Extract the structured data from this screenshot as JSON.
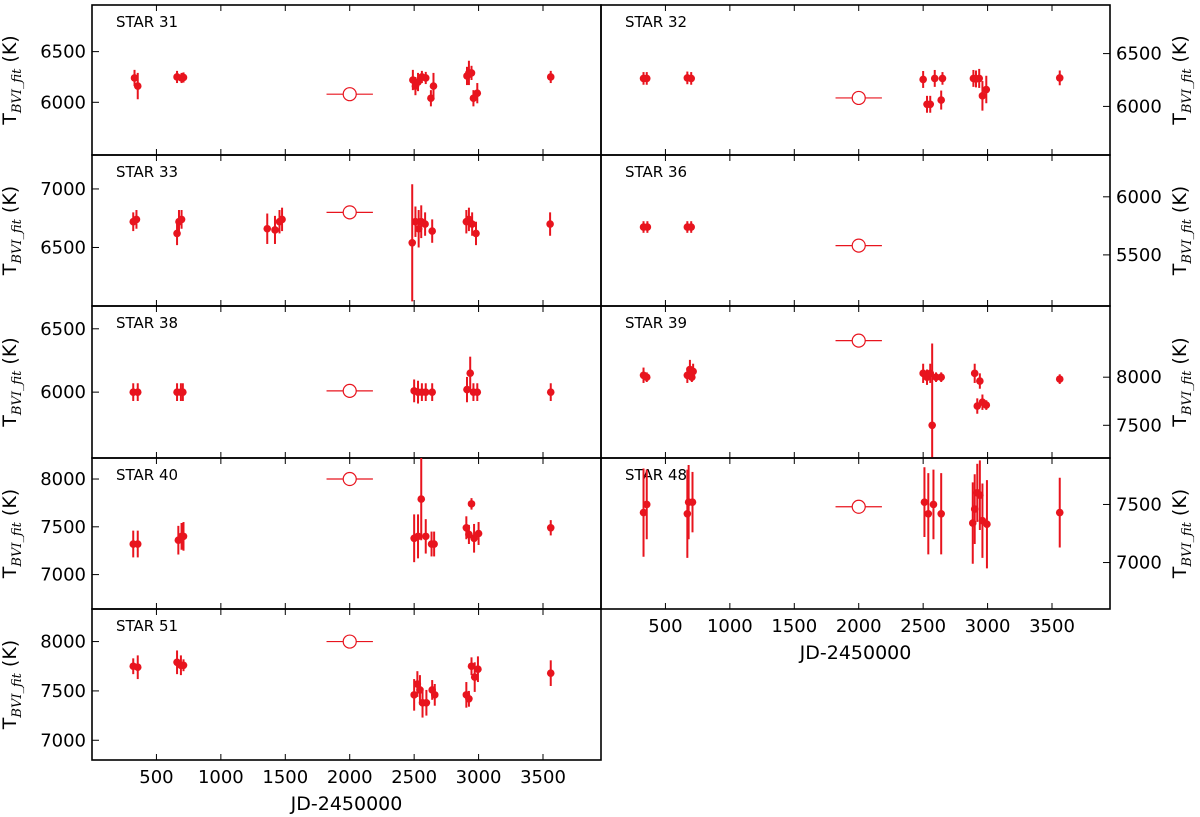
{
  "chart_data": {
    "type": "scatter",
    "xlabel": "JD-2450000",
    "ylabel": {
      "prefix": "T",
      "sub": "BVI_fit",
      "unit": " (K)"
    },
    "xlim": [
      0,
      3950
    ],
    "xticks": [
      500,
      1000,
      1500,
      2000,
      2500,
      3000,
      3500
    ],
    "colors": {
      "points": "#e8141e"
    },
    "panels": [
      {
        "label": "STAR 31",
        "side": "left",
        "ylim": [
          5480,
          6960
        ],
        "yticks": [
          6000,
          6500
        ],
        "points": [
          [
            330,
            6240,
            80
          ],
          [
            355,
            6160,
            130
          ],
          [
            660,
            6250,
            60
          ],
          [
            695,
            6240,
            50
          ],
          [
            710,
            6245,
            50
          ],
          [
            2490,
            6220,
            100
          ],
          [
            2510,
            6160,
            90
          ],
          [
            2530,
            6200,
            90
          ],
          [
            2560,
            6250,
            60
          ],
          [
            2590,
            6240,
            60
          ],
          [
            2630,
            6040,
            80
          ],
          [
            2650,
            6160,
            130
          ],
          [
            2910,
            6260,
            90
          ],
          [
            2925,
            6290,
            120
          ],
          [
            2945,
            6290,
            70
          ],
          [
            2960,
            6040,
            80
          ],
          [
            2990,
            6090,
            100
          ],
          [
            3560,
            6250,
            60
          ]
        ],
        "mean": [
          2000,
          6080,
          180
        ]
      },
      {
        "label": "STAR 32",
        "side": "right",
        "ylim": [
          5540,
          6960
        ],
        "yticks": [
          6000,
          6500
        ],
        "points": [
          [
            330,
            6265,
            60
          ],
          [
            355,
            6265,
            60
          ],
          [
            670,
            6270,
            60
          ],
          [
            700,
            6265,
            60
          ],
          [
            2500,
            6255,
            80
          ],
          [
            2530,
            6020,
            80
          ],
          [
            2555,
            6020,
            80
          ],
          [
            2590,
            6265,
            80
          ],
          [
            2640,
            6060,
            90
          ],
          [
            2650,
            6265,
            60
          ],
          [
            2890,
            6265,
            80
          ],
          [
            2910,
            6260,
            80
          ],
          [
            2935,
            6265,
            90
          ],
          [
            2960,
            6100,
            140
          ],
          [
            2990,
            6160,
            130
          ],
          [
            3560,
            6270,
            70
          ]
        ],
        "mean": [
          2000,
          6080,
          180
        ]
      },
      {
        "label": "STAR 33",
        "side": "left",
        "ylim": [
          6000,
          7290
        ],
        "yticks": [
          6500,
          7000
        ],
        "points": [
          [
            320,
            6720,
            80
          ],
          [
            345,
            6740,
            80
          ],
          [
            660,
            6620,
            100
          ],
          [
            675,
            6720,
            100
          ],
          [
            695,
            6740,
            80
          ],
          [
            1360,
            6660,
            130
          ],
          [
            1420,
            6650,
            120
          ],
          [
            1455,
            6720,
            100
          ],
          [
            1475,
            6740,
            100
          ],
          [
            2485,
            6540,
            500
          ],
          [
            2510,
            6720,
            130
          ],
          [
            2535,
            6660,
            160
          ],
          [
            2555,
            6720,
            140
          ],
          [
            2585,
            6700,
            100
          ],
          [
            2640,
            6640,
            100
          ],
          [
            2905,
            6720,
            100
          ],
          [
            2925,
            6740,
            100
          ],
          [
            2950,
            6700,
            100
          ],
          [
            2980,
            6620,
            100
          ],
          [
            3555,
            6700,
            100
          ]
        ],
        "mean": [
          2000,
          6800,
          180
        ]
      },
      {
        "label": "STAR 36",
        "side": "right",
        "ylim": [
          5060,
          6360
        ],
        "yticks": [
          5500,
          6000
        ],
        "points": [
          [
            330,
            5740,
            50
          ],
          [
            360,
            5740,
            50
          ],
          [
            670,
            5740,
            50
          ],
          [
            700,
            5740,
            50
          ]
        ],
        "mean": [
          2000,
          5580,
          180
        ]
      },
      {
        "label": "STAR 38",
        "side": "left",
        "ylim": [
          5480,
          6680
        ],
        "yticks": [
          6000,
          6500
        ],
        "points": [
          [
            320,
            6000,
            70
          ],
          [
            355,
            6000,
            70
          ],
          [
            660,
            6000,
            70
          ],
          [
            690,
            6000,
            70
          ],
          [
            705,
            6000,
            70
          ],
          [
            2500,
            6010,
            90
          ],
          [
            2530,
            6000,
            90
          ],
          [
            2560,
            6000,
            70
          ],
          [
            2590,
            6000,
            70
          ],
          [
            2640,
            6000,
            70
          ],
          [
            2910,
            6020,
            100
          ],
          [
            2935,
            6150,
            130
          ],
          [
            2960,
            6000,
            70
          ],
          [
            2990,
            6000,
            70
          ],
          [
            3560,
            6000,
            70
          ]
        ],
        "mean": [
          2000,
          6010,
          180
        ]
      },
      {
        "label": "STAR 39",
        "side": "right",
        "ylim": [
          7160,
          8740
        ],
        "yticks": [
          7500,
          8000
        ],
        "points": [
          [
            330,
            8020,
            80
          ],
          [
            355,
            8000,
            50
          ],
          [
            670,
            8020,
            80
          ],
          [
            690,
            8080,
            100
          ],
          [
            705,
            8000,
            50
          ],
          [
            715,
            8060,
            80
          ],
          [
            2500,
            8040,
            100
          ],
          [
            2530,
            8000,
            80
          ],
          [
            2555,
            8040,
            100
          ],
          [
            2570,
            7500,
            850
          ],
          [
            2600,
            8000,
            50
          ],
          [
            2640,
            8000,
            50
          ],
          [
            2900,
            8040,
            100
          ],
          [
            2920,
            7700,
            80
          ],
          [
            2940,
            7960,
            80
          ],
          [
            2960,
            7740,
            80
          ],
          [
            2990,
            7710,
            50
          ],
          [
            3560,
            7980,
            50
          ]
        ],
        "mean": [
          2000,
          8380,
          180
        ]
      },
      {
        "label": "STAR 40",
        "side": "left",
        "ylim": [
          6640,
          8220
        ],
        "yticks": [
          7000,
          7500,
          8000
        ],
        "points": [
          [
            320,
            7320,
            140
          ],
          [
            355,
            7320,
            140
          ],
          [
            670,
            7360,
            150
          ],
          [
            695,
            7400,
            140
          ],
          [
            710,
            7400,
            150
          ],
          [
            2500,
            7380,
            250
          ],
          [
            2530,
            7400,
            230
          ],
          [
            2555,
            7790,
            430
          ],
          [
            2590,
            7400,
            180
          ],
          [
            2635,
            7320,
            130
          ],
          [
            2655,
            7320,
            130
          ],
          [
            2905,
            7490,
            120
          ],
          [
            2925,
            7420,
            100
          ],
          [
            2945,
            7740,
            60
          ],
          [
            2965,
            7380,
            150
          ],
          [
            3000,
            7430,
            120
          ],
          [
            3560,
            7490,
            80
          ]
        ],
        "mean": [
          2000,
          8000,
          180
        ]
      },
      {
        "label": "STAR 48",
        "side": "right",
        "ylim": [
          6600,
          7900
        ],
        "yticks": [
          7000,
          7500
        ],
        "points": [
          [
            330,
            7430,
            380
          ],
          [
            355,
            7500,
            300
          ],
          [
            670,
            7420,
            380
          ],
          [
            680,
            7520,
            320
          ],
          [
            710,
            7520,
            260
          ],
          [
            2510,
            7520,
            300
          ],
          [
            2540,
            7420,
            350
          ],
          [
            2580,
            7500,
            300
          ],
          [
            2640,
            7420,
            350
          ],
          [
            2885,
            7340,
            350
          ],
          [
            2900,
            7460,
            300
          ],
          [
            2920,
            7600,
            250
          ],
          [
            2940,
            7580,
            300
          ],
          [
            2960,
            7360,
            320
          ],
          [
            2995,
            7330,
            380
          ],
          [
            3560,
            7430,
            300
          ]
        ],
        "mean": [
          2000,
          7480,
          180
        ]
      },
      {
        "label": "STAR 51",
        "side": "left",
        "ylim": [
          6800,
          8330
        ],
        "yticks": [
          7000,
          7500,
          8000
        ],
        "points": [
          [
            320,
            7750,
            80
          ],
          [
            355,
            7740,
            120
          ],
          [
            660,
            7790,
            120
          ],
          [
            690,
            7760,
            100
          ],
          [
            710,
            7760,
            60
          ],
          [
            2500,
            7460,
            160
          ],
          [
            2525,
            7570,
            130
          ],
          [
            2545,
            7510,
            150
          ],
          [
            2565,
            7380,
            150
          ],
          [
            2595,
            7380,
            130
          ],
          [
            2640,
            7510,
            100
          ],
          [
            2660,
            7460,
            110
          ],
          [
            2905,
            7460,
            130
          ],
          [
            2925,
            7420,
            80
          ],
          [
            2945,
            7750,
            90
          ],
          [
            2970,
            7640,
            150
          ],
          [
            2995,
            7720,
            130
          ],
          [
            3560,
            7680,
            130
          ]
        ],
        "mean": [
          2000,
          8000,
          180
        ]
      }
    ]
  }
}
